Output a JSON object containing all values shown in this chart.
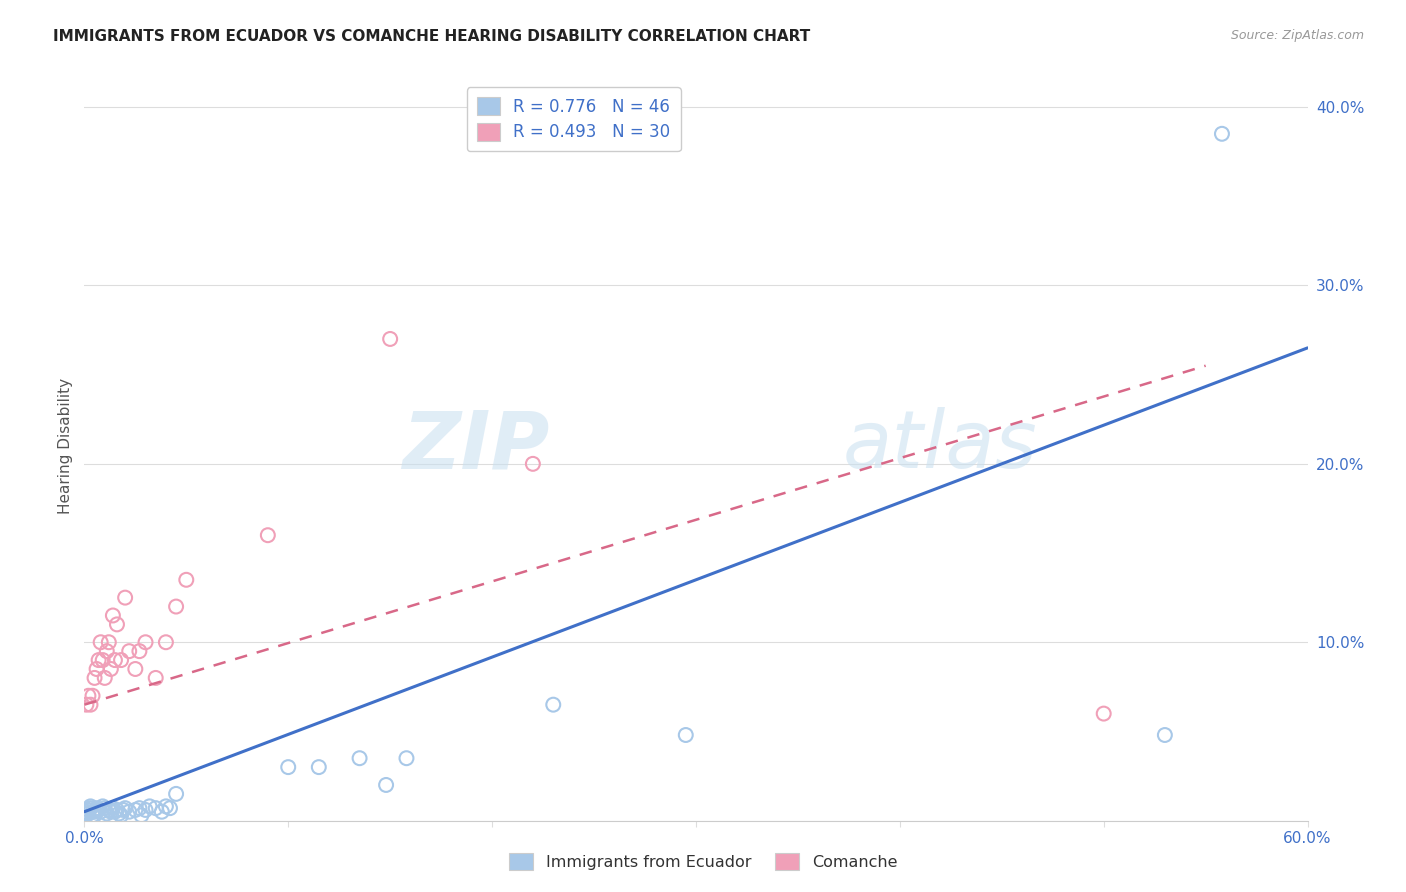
{
  "title": "IMMIGRANTS FROM ECUADOR VS COMANCHE HEARING DISABILITY CORRELATION CHART",
  "source": "Source: ZipAtlas.com",
  "ylabel": "Hearing Disability",
  "xlim": [
    0.0,
    0.6
  ],
  "ylim": [
    0.0,
    0.42
  ],
  "xticks": [
    0.0,
    0.1,
    0.2,
    0.3,
    0.4,
    0.5,
    0.6
  ],
  "yticks": [
    0.0,
    0.1,
    0.2,
    0.3,
    0.4
  ],
  "xtick_labels_show": {
    "0.0": "0.0%",
    "0.6": "60.0%"
  },
  "ytick_labels": [
    "",
    "10.0%",
    "20.0%",
    "30.0%",
    "40.0%"
  ],
  "blue_R": 0.776,
  "blue_N": 46,
  "pink_R": 0.493,
  "pink_N": 30,
  "blue_color": "#a8c8e8",
  "pink_color": "#f0a0b8",
  "blue_line_color": "#4070c8",
  "pink_line_color": "#d86888",
  "legend_label_blue": "Immigrants from Ecuador",
  "legend_label_pink": "Comanche",
  "watermark": "ZIPatlas",
  "blue_points": [
    [
      0.001,
      0.005
    ],
    [
      0.002,
      0.006
    ],
    [
      0.001,
      0.004
    ],
    [
      0.003,
      0.008
    ],
    [
      0.004,
      0.003
    ],
    [
      0.005,
      0.005
    ],
    [
      0.006,
      0.006
    ],
    [
      0.003,
      0.007
    ],
    [
      0.002,
      0.004
    ],
    [
      0.004,
      0.005
    ],
    [
      0.005,
      0.003
    ],
    [
      0.006,
      0.007
    ],
    [
      0.007,
      0.006
    ],
    [
      0.008,
      0.005
    ],
    [
      0.009,
      0.008
    ],
    [
      0.01,
      0.007
    ],
    [
      0.011,
      0.004
    ],
    [
      0.012,
      0.006
    ],
    [
      0.013,
      0.005
    ],
    [
      0.014,
      0.007
    ],
    [
      0.015,
      0.005
    ],
    [
      0.016,
      0.006
    ],
    [
      0.017,
      0.004
    ],
    [
      0.018,
      0.003
    ],
    [
      0.019,
      0.006
    ],
    [
      0.02,
      0.007
    ],
    [
      0.022,
      0.005
    ],
    [
      0.025,
      0.006
    ],
    [
      0.027,
      0.007
    ],
    [
      0.028,
      0.003
    ],
    [
      0.03,
      0.006
    ],
    [
      0.032,
      0.008
    ],
    [
      0.035,
      0.007
    ],
    [
      0.038,
      0.005
    ],
    [
      0.04,
      0.008
    ],
    [
      0.042,
      0.007
    ],
    [
      0.045,
      0.015
    ],
    [
      0.1,
      0.03
    ],
    [
      0.115,
      0.03
    ],
    [
      0.135,
      0.035
    ],
    [
      0.148,
      0.02
    ],
    [
      0.158,
      0.035
    ],
    [
      0.23,
      0.065
    ],
    [
      0.295,
      0.048
    ],
    [
      0.53,
      0.048
    ],
    [
      0.558,
      0.385
    ]
  ],
  "pink_points": [
    [
      0.001,
      0.065
    ],
    [
      0.002,
      0.07
    ],
    [
      0.003,
      0.065
    ],
    [
      0.004,
      0.07
    ],
    [
      0.005,
      0.08
    ],
    [
      0.006,
      0.085
    ],
    [
      0.007,
      0.09
    ],
    [
      0.008,
      0.1
    ],
    [
      0.009,
      0.09
    ],
    [
      0.01,
      0.08
    ],
    [
      0.011,
      0.095
    ],
    [
      0.012,
      0.1
    ],
    [
      0.013,
      0.085
    ],
    [
      0.014,
      0.115
    ],
    [
      0.015,
      0.09
    ],
    [
      0.016,
      0.11
    ],
    [
      0.018,
      0.09
    ],
    [
      0.02,
      0.125
    ],
    [
      0.022,
      0.095
    ],
    [
      0.025,
      0.085
    ],
    [
      0.027,
      0.095
    ],
    [
      0.03,
      0.1
    ],
    [
      0.035,
      0.08
    ],
    [
      0.04,
      0.1
    ],
    [
      0.045,
      0.12
    ],
    [
      0.05,
      0.135
    ],
    [
      0.09,
      0.16
    ],
    [
      0.15,
      0.27
    ],
    [
      0.22,
      0.2
    ],
    [
      0.5,
      0.06
    ]
  ],
  "blue_line": [
    [
      0.0,
      0.6
    ],
    [
      0.005,
      0.265
    ]
  ],
  "pink_line": [
    [
      0.0,
      0.55
    ],
    [
      0.065,
      0.255
    ]
  ],
  "grid_color": "#dddddd",
  "tick_color": "#4070c8"
}
